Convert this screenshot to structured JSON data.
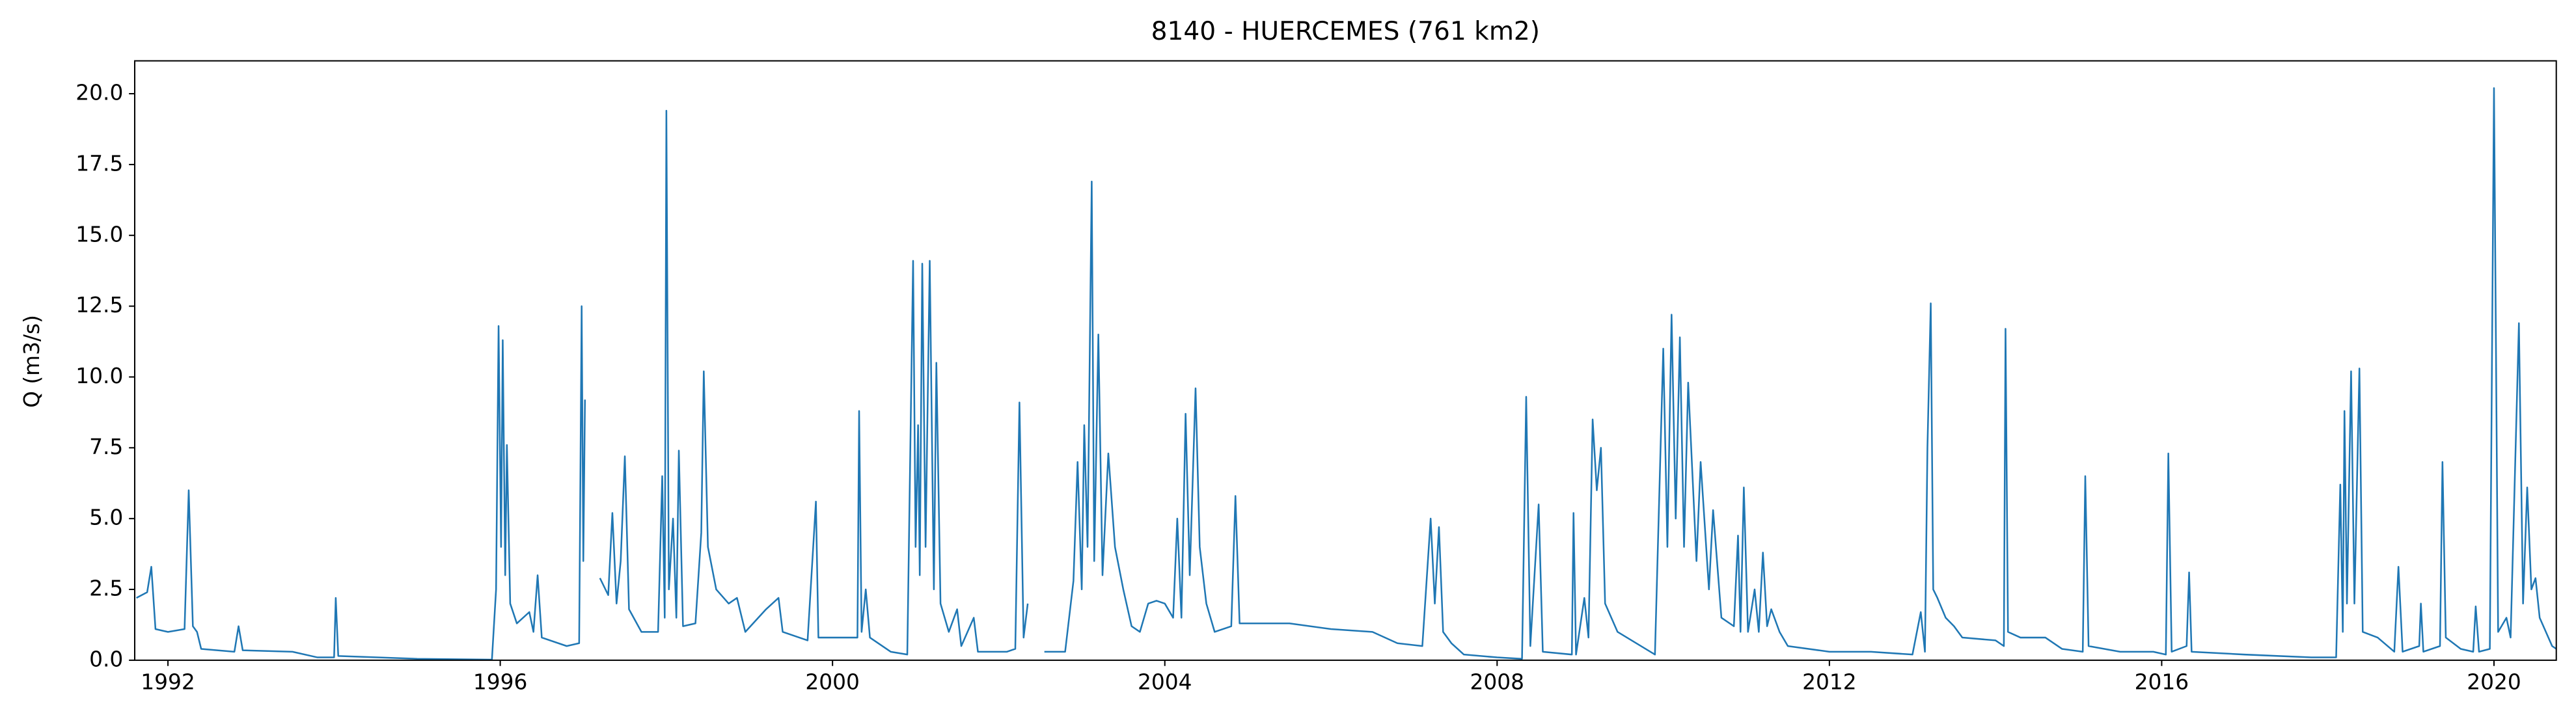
{
  "chart_data": {
    "type": "line",
    "title": "8140 - HUERCEMES (761 km2)",
    "ylabel": "Q (m3/s)",
    "xlim": [
      1991.6,
      2020.75
    ],
    "xticks": [
      1992,
      1996,
      2000,
      2004,
      2008,
      2012,
      2016,
      2020
    ],
    "ylim": [
      0,
      21.16
    ],
    "yticks": [
      {
        "value": 0,
        "label": "0.0"
      },
      2.5,
      {
        "value": 5,
        "label": "5.0"
      },
      7.5,
      {
        "value": 10,
        "label": "10.0"
      },
      12.5,
      {
        "value": 15,
        "label": "15.0"
      },
      17.5,
      {
        "value": 20,
        "label": "20.0"
      }
    ],
    "grid": false,
    "x": [
      1991.62,
      1991.75,
      1991.8,
      1991.85,
      1992.0,
      1992.2,
      1992.25,
      1992.3,
      1992.35,
      1992.4,
      1992.8,
      1992.85,
      1992.9,
      1993.5,
      1993.8,
      1994.0,
      1994.02,
      1994.05,
      1995.0,
      1995.9,
      1995.95,
      1995.98,
      1996.01,
      1996.03,
      1996.06,
      1996.08,
      1996.12,
      1996.2,
      1996.35,
      1996.4,
      1996.45,
      1996.5,
      1996.8,
      1996.95,
      1996.98,
      1997.0,
      1997.02,
      1997.1,
      1997.2,
      1997.3,
      1997.35,
      1997.4,
      1997.45,
      1997.5,
      1997.55,
      1997.7,
      1997.9,
      1997.95,
      1997.98,
      1998.0,
      1998.03,
      1998.08,
      1998.12,
      1998.15,
      1998.2,
      1998.35,
      1998.42,
      1998.45,
      1998.5,
      1998.6,
      1998.75,
      1998.85,
      1998.95,
      1999.2,
      1999.35,
      1999.4,
      1999.7,
      1999.8,
      1999.83,
      2000.1,
      2000.3,
      2000.32,
      2000.35,
      2000.4,
      2000.45,
      2000.7,
      2000.9,
      2000.97,
      2001.0,
      2001.03,
      2001.05,
      2001.08,
      2001.12,
      2001.17,
      2001.22,
      2001.25,
      2001.3,
      2001.4,
      2001.5,
      2001.55,
      2001.7,
      2001.75,
      2001.9,
      2002.1,
      2002.2,
      2002.25,
      2002.3,
      2002.35,
      2002.4,
      2002.55,
      2002.8,
      2002.9,
      2002.95,
      2003.0,
      2003.03,
      2003.07,
      2003.12,
      2003.15,
      2003.2,
      2003.25,
      2003.32,
      2003.4,
      2003.5,
      2003.6,
      2003.7,
      2003.8,
      2003.9,
      2004.0,
      2004.1,
      2004.15,
      2004.2,
      2004.25,
      2004.3,
      2004.37,
      2004.42,
      2004.5,
      2004.6,
      2004.8,
      2004.85,
      2004.9,
      2005.5,
      2006.0,
      2006.5,
      2006.8,
      2007.1,
      2007.2,
      2007.25,
      2007.3,
      2007.35,
      2007.45,
      2007.6,
      2008.0,
      2008.3,
      2008.35,
      2008.4,
      2008.5,
      2008.55,
      2008.9,
      2008.92,
      2008.95,
      2009.05,
      2009.1,
      2009.15,
      2009.2,
      2009.25,
      2009.3,
      2009.45,
      2009.9,
      2010.0,
      2010.05,
      2010.1,
      2010.15,
      2010.2,
      2010.25,
      2010.3,
      2010.4,
      2010.45,
      2010.55,
      2010.6,
      2010.7,
      2010.85,
      2010.9,
      2010.93,
      2010.97,
      2011.02,
      2011.1,
      2011.15,
      2011.2,
      2011.25,
      2011.3,
      2011.4,
      2011.5,
      2012.0,
      2012.5,
      2013.0,
      2013.1,
      2013.15,
      2013.18,
      2013.22,
      2013.25,
      2013.3,
      2013.4,
      2013.5,
      2013.6,
      2014.0,
      2014.1,
      2014.12,
      2014.15,
      2014.3,
      2014.6,
      2014.8,
      2015.05,
      2015.08,
      2015.12,
      2015.5,
      2015.9,
      2016.05,
      2016.08,
      2016.12,
      2016.3,
      2016.33,
      2016.36,
      2017.0,
      2017.8,
      2018.1,
      2018.15,
      2018.18,
      2018.2,
      2018.23,
      2018.28,
      2018.32,
      2018.38,
      2018.42,
      2018.6,
      2018.8,
      2018.85,
      2018.9,
      2019.1,
      2019.12,
      2019.15,
      2019.35,
      2019.38,
      2019.42,
      2019.6,
      2019.75,
      2019.78,
      2019.82,
      2019.95,
      2020.0,
      2020.05,
      2020.15,
      2020.2,
      2020.3,
      2020.35,
      2020.4,
      2020.45,
      2020.5,
      2020.55,
      2020.7,
      2020.75
    ],
    "series": [
      {
        "name": "Q",
        "color": "#1f77b4",
        "values": [
          2.2,
          2.4,
          3.3,
          1.1,
          1.0,
          1.1,
          6.0,
          1.2,
          1.0,
          0.4,
          0.3,
          1.2,
          0.35,
          0.3,
          0.1,
          0.1,
          2.2,
          0.15,
          0.05,
          0.02,
          2.5,
          11.8,
          4,
          11.3,
          3,
          7.6,
          2,
          1.3,
          1.7,
          1.0,
          3.0,
          0.8,
          0.5,
          0.6,
          12.5,
          3.5,
          9.2,
          null,
          2.9,
          2.3,
          5.2,
          2.0,
          3.5,
          7.2,
          1.8,
          1.0,
          1.0,
          6.5,
          1.5,
          19.4,
          2.5,
          5.0,
          1.5,
          7.4,
          1.2,
          1.3,
          4.5,
          10.2,
          4.0,
          2.5,
          2.0,
          2.2,
          1.0,
          1.8,
          2.2,
          1.0,
          0.7,
          5.6,
          0.8,
          0.8,
          0.8,
          8.8,
          1.0,
          2.5,
          0.8,
          0.3,
          0.2,
          14.1,
          4,
          8.3,
          3,
          14.0,
          4,
          14.1,
          2.5,
          10.5,
          2.0,
          1.0,
          1.8,
          0.5,
          1.5,
          0.3,
          0.3,
          0.3,
          0.4,
          9.1,
          0.8,
          2.0,
          null,
          0.3,
          0.3,
          2.8,
          7.0,
          2.5,
          8.3,
          4.0,
          16.9,
          3.5,
          11.5,
          3.0,
          7.3,
          4.0,
          2.5,
          1.2,
          1.0,
          2.0,
          2.1,
          2.0,
          1.5,
          5.0,
          1.5,
          8.7,
          3.0,
          9.6,
          4.0,
          2.0,
          1.0,
          1.2,
          5.8,
          1.3,
          1.3,
          1.1,
          1.0,
          0.6,
          0.5,
          5.0,
          2.0,
          4.7,
          1.0,
          0.6,
          0.2,
          0.1,
          0.05,
          9.3,
          0.5,
          5.5,
          0.3,
          0.2,
          5.2,
          0.2,
          2.2,
          0.8,
          8.5,
          6.0,
          7.5,
          2.0,
          1.0,
          0.2,
          11.0,
          4,
          12.2,
          5,
          11.4,
          4,
          9.8,
          3.5,
          7.0,
          2.5,
          5.3,
          1.5,
          1.2,
          4.4,
          1.0,
          6.1,
          1.0,
          2.5,
          1.0,
          3.8,
          1.2,
          1.8,
          1.0,
          0.5,
          0.3,
          0.3,
          0.2,
          1.7,
          0.3,
          7.5,
          12.6,
          2.5,
          2.2,
          1.5,
          1.2,
          0.8,
          0.7,
          0.5,
          11.7,
          1.0,
          0.8,
          0.8,
          0.4,
          0.3,
          6.5,
          0.5,
          0.3,
          0.3,
          0.2,
          7.3,
          0.3,
          0.5,
          3.1,
          0.3,
          0.2,
          0.1,
          0.1,
          6.2,
          1.0,
          8.8,
          2.0,
          10.2,
          2.0,
          10.3,
          1.0,
          0.8,
          0.3,
          3.3,
          0.3,
          0.5,
          2.0,
          0.3,
          0.5,
          7.0,
          0.8,
          0.4,
          0.3,
          1.9,
          0.3,
          0.4,
          20.2,
          1.0,
          1.5,
          0.8,
          11.9,
          2.0,
          6.1,
          2.5,
          2.9,
          1.5,
          0.5,
          0.4
        ]
      }
    ]
  }
}
